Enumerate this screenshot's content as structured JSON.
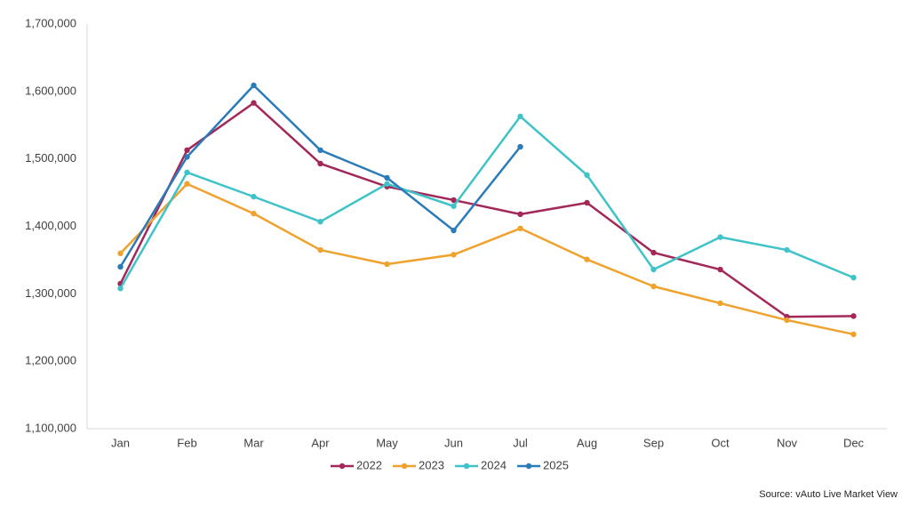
{
  "chart_data": {
    "type": "line",
    "categories": [
      "Jan",
      "Feb",
      "Mar",
      "Apr",
      "May",
      "Jun",
      "Jul",
      "Aug",
      "Sep",
      "Oct",
      "Nov",
      "Dec"
    ],
    "series": [
      {
        "name": "2022",
        "color": "#a3285a",
        "values": [
          1315000,
          1513000,
          1583000,
          1493000,
          1459000,
          1439000,
          1418000,
          1435000,
          1361000,
          1336000,
          1266000,
          1267000
        ]
      },
      {
        "name": "2023",
        "color": "#f0a22e",
        "values": [
          1360000,
          1463000,
          1419000,
          1365000,
          1344000,
          1358000,
          1397000,
          1351000,
          1311000,
          1286000,
          1261000,
          1240000
        ]
      },
      {
        "name": "2024",
        "color": "#3fc3c9",
        "values": [
          1308000,
          1480000,
          1444000,
          1407000,
          1463000,
          1430000,
          1563000,
          1476000,
          1336000,
          1384000,
          1365000,
          1324000
        ]
      },
      {
        "name": "2025",
        "color": "#2b7bb9",
        "values": [
          1340000,
          1503000,
          1609000,
          1513000,
          1472000,
          1394000,
          1518000,
          null,
          null,
          null,
          null,
          null
        ]
      }
    ],
    "ylim": [
      1100000,
      1700000
    ],
    "yticks": [
      {
        "value": 1100000,
        "label": "1,100,000"
      },
      {
        "value": 1200000,
        "label": "1,200,000"
      },
      {
        "value": 1300000,
        "label": "1,300,000"
      },
      {
        "value": 1400000,
        "label": "1,400,000"
      },
      {
        "value": 1500000,
        "label": "1,500,000"
      },
      {
        "value": 1600000,
        "label": "1,600,000"
      },
      {
        "value": 1700000,
        "label": "1,700,000"
      }
    ],
    "grid": false,
    "legend": "bottom",
    "source": "Source: vAuto Live Market View"
  }
}
